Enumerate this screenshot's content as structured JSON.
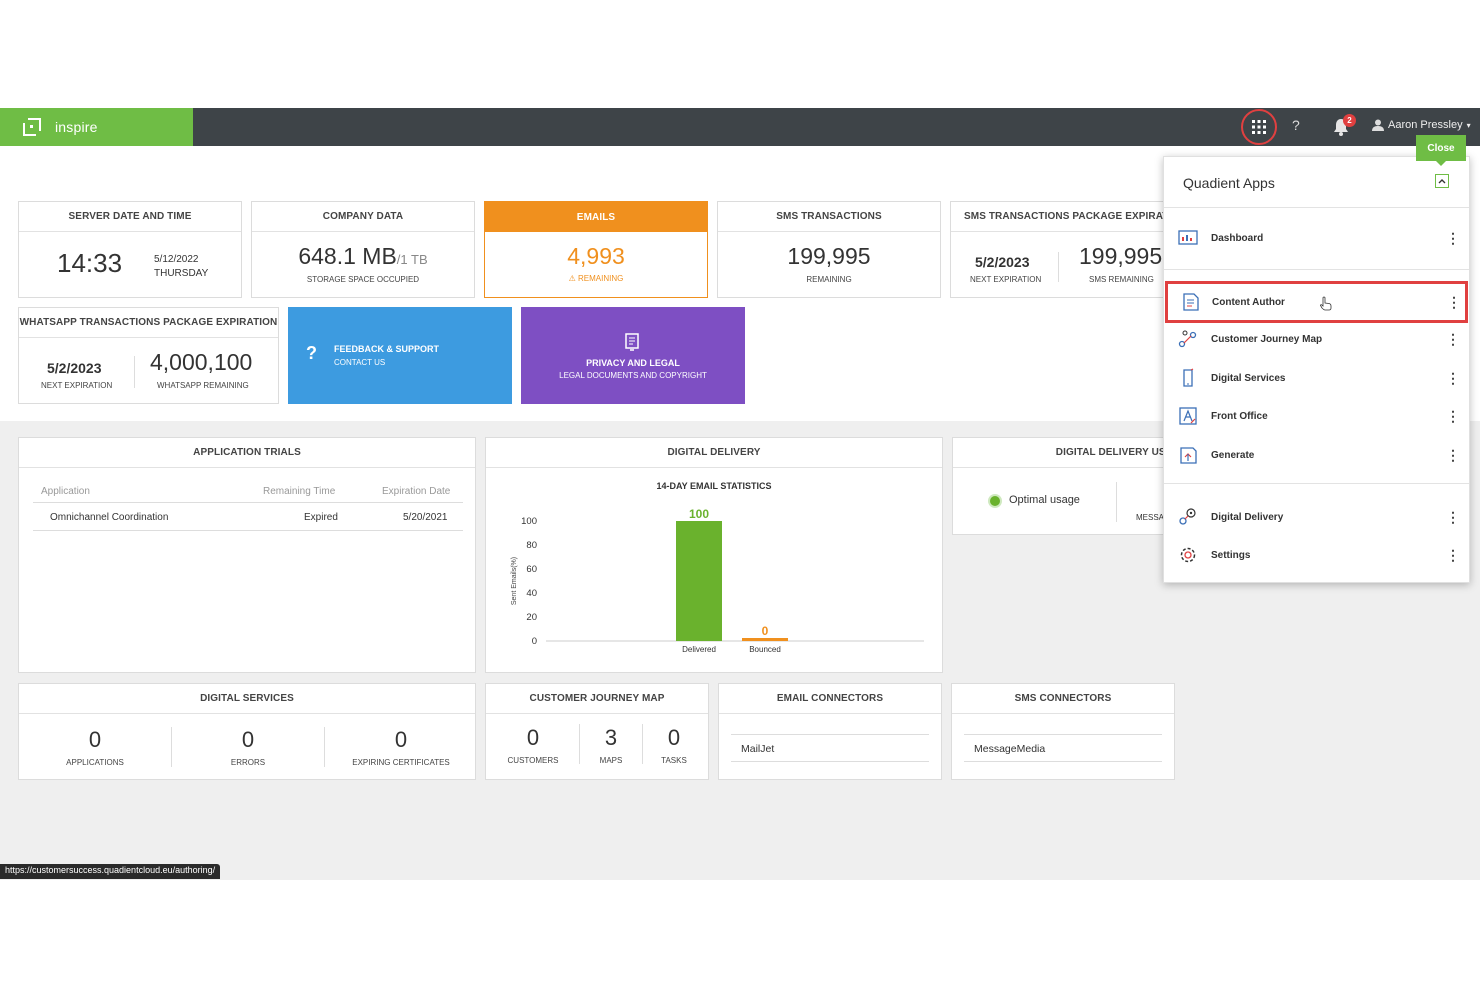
{
  "header": {
    "brand": "inspire",
    "help": "?",
    "notification_count": "2",
    "user_name": "Aaron Pressley",
    "user_caret": "▾"
  },
  "cards": {
    "server": {
      "title": "SERVER DATE AND TIME",
      "time": "14:33",
      "date": "5/12/2022",
      "day": "THURSDAY"
    },
    "company": {
      "title": "COMPANY DATA",
      "value": "648.1 MB",
      "total": "/1 TB",
      "caption": "STORAGE SPACE OCCUPIED"
    },
    "emails": {
      "title": "EMAILS",
      "value": "4,993",
      "caption": "REMAINING"
    },
    "sms": {
      "title": "SMS TRANSACTIONS",
      "value": "199,995",
      "caption": "REMAINING"
    },
    "sms_package": {
      "title": "SMS TRANSACTIONS PACKAGE EXPIRATIO",
      "date": "5/2/2023",
      "date_caption": "NEXT EXPIRATION",
      "value": "199,995",
      "value_caption": "SMS REMAINING"
    },
    "whatsapp": {
      "title": "WHATSAPP TRANSACTIONS PACKAGE EXPIRATION",
      "date": "5/2/2023",
      "date_caption": "NEXT EXPIRATION",
      "value": "4,000,100",
      "value_caption": "WHATSAPP REMAINING"
    }
  },
  "tiles": {
    "feedback": {
      "title": "FEEDBACK & SUPPORT",
      "subtitle": "CONTACT US",
      "color": "#3d9be0"
    },
    "privacy": {
      "title": "PRIVACY AND LEGAL",
      "subtitle": "LEGAL DOCUMENTS AND COPYRIGHT",
      "color": "#7e4fc3"
    }
  },
  "trials": {
    "title": "APPLICATION TRIALS",
    "columns": [
      "Application",
      "Remaining Time",
      "Expiration Date"
    ],
    "rows": [
      {
        "application": "Omnichannel Coordination",
        "remaining": "Expired",
        "expiration": "5/20/2021"
      }
    ]
  },
  "delivery": {
    "title": "DIGITAL DELIVERY",
    "chart_title": "14-DAY EMAIL STATISTICS"
  },
  "chart_data": {
    "type": "bar",
    "title": "14-DAY EMAIL STATISTICS",
    "categories": [
      "Delivered",
      "Bounced"
    ],
    "values": [
      100,
      0
    ],
    "colors": [
      "#6ab22d",
      "#f0901e"
    ],
    "ylabel": "Sent Emails(%)",
    "ylim": [
      0,
      100
    ],
    "yticks": [
      100,
      80,
      60,
      40,
      20,
      0
    ],
    "data_labels": [
      "100",
      "0"
    ]
  },
  "usage": {
    "title": "DIGITAL DELIVERY USA",
    "status": "Optimal usage",
    "right_label": "MESSA"
  },
  "services": {
    "title": "DIGITAL SERVICES",
    "stats": [
      {
        "value": "0",
        "label": "APPLICATIONS"
      },
      {
        "value": "0",
        "label": "ERRORS"
      },
      {
        "value": "0",
        "label": "EXPIRING CERTIFICATES"
      }
    ]
  },
  "journey": {
    "title": "CUSTOMER JOURNEY MAP",
    "stats": [
      {
        "value": "0",
        "label": "CUSTOMERS"
      },
      {
        "value": "3",
        "label": "MAPS"
      },
      {
        "value": "0",
        "label": "TASKS"
      }
    ]
  },
  "email_connectors": {
    "title": "EMAIL CONNECTORS",
    "item": "MailJet"
  },
  "sms_connectors": {
    "title": "SMS CONNECTORS",
    "item": "MessageMedia"
  },
  "apps_panel": {
    "title": "Quadient Apps",
    "close_tooltip": "Close",
    "items": [
      {
        "label": "Dashboard",
        "icon": "dashboard-icon"
      },
      {
        "label": "Content Author",
        "icon": "content-author-icon"
      },
      {
        "label": "Customer Journey Map",
        "icon": "journey-map-icon"
      },
      {
        "label": "Digital Services",
        "icon": "digital-services-icon"
      },
      {
        "label": "Front Office",
        "icon": "front-office-icon"
      },
      {
        "label": "Generate",
        "icon": "generate-icon"
      },
      {
        "label": "Digital Delivery",
        "icon": "digital-delivery-icon"
      },
      {
        "label": "Settings",
        "icon": "settings-icon"
      }
    ],
    "kebab": "⋮"
  },
  "status_url": "https://customersuccess.quadientcloud.eu/authoring/",
  "colors": {
    "brand_green": "#6fbd45",
    "topbar": "#3e4448",
    "highlight_red": "#e04040",
    "orange": "#f0901e"
  }
}
